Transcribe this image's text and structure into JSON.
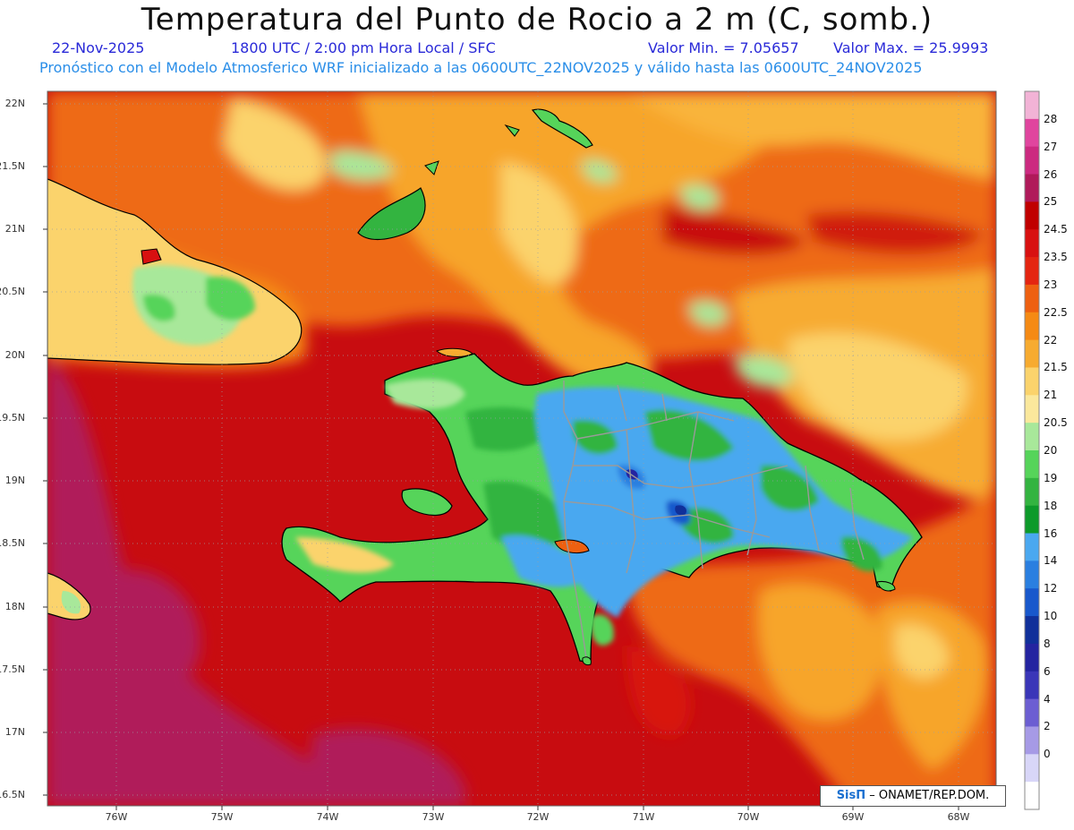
{
  "header": {
    "title": "Temperatura del Punto de Rocio a 2 m (C, somb.)",
    "date": "22-Nov-2025",
    "time": "1800 UTC / 2:00 pm Hora Local / SFC",
    "min_label": "Valor Min. = 7.05657",
    "max_label": "Valor Max. = 25.9993",
    "forecast_line": "Pronóstico con el Modelo Atmosferico WRF inicializado a las 0600UTC_22NOV2025 y válido hasta las  0600UTC_24NOV2025",
    "color_date": "#2a2ad8",
    "color_forecast": "#2a8ee8"
  },
  "map": {
    "lat_labels": [
      "22N",
      "21.5N",
      "21N",
      "20.5N",
      "20N",
      "19.5N",
      "19N",
      "18.5N",
      "18N",
      "17.5N",
      "17N",
      "16.5N"
    ],
    "lon_labels": [
      "76W",
      "75W",
      "74W",
      "73W",
      "72W",
      "71W",
      "70W",
      "69W",
      "68W"
    ],
    "credit_logo": "SisΠ",
    "credit_text": "– ONAMET/REP.DOM."
  },
  "colorbar": {
    "levels": [
      "28",
      "27",
      "26",
      "25",
      "24.5",
      "23.5",
      "23",
      "22.5",
      "22",
      "21.5",
      "21",
      "20.5",
      "20",
      "19",
      "18",
      "16",
      "14",
      "12",
      "10",
      "8",
      "6",
      "4",
      "2",
      "0"
    ],
    "colors": [
      "#f2b3d6",
      "#e0459e",
      "#cc2a80",
      "#b01a5a",
      "#c00000",
      "#d81010",
      "#e42510",
      "#ee6010",
      "#f58a14",
      "#f7ab30",
      "#fbd36c",
      "#fbe89c",
      "#a8e89a",
      "#56d45a",
      "#33b440",
      "#0d9a2a",
      "#4aa8f0",
      "#2a7fe0",
      "#1858cc",
      "#10309a",
      "#2424a0",
      "#3a36b8",
      "#6c5ed2",
      "#a69ae6",
      "#d8d6f8",
      "#ffffff"
    ]
  }
}
